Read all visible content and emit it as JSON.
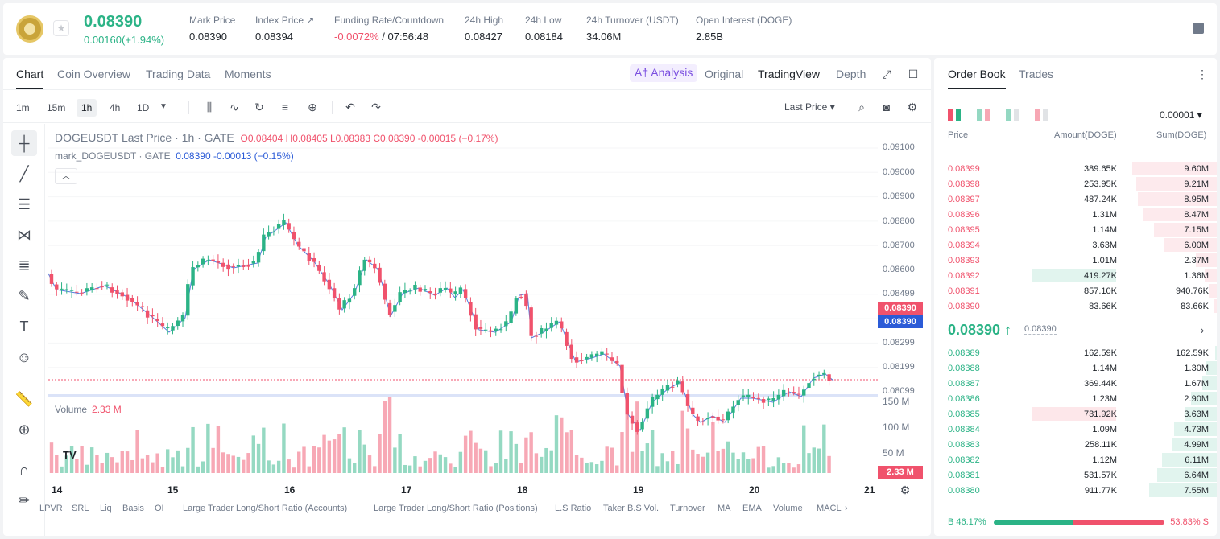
{
  "header": {
    "price": "0.08390",
    "change": "0.00160(+1.94%)",
    "stats": [
      {
        "label": "Mark Price",
        "value": "0.08390"
      },
      {
        "label": "Index Price ↗",
        "value": "0.08394"
      },
      {
        "label": "Funding Rate/Countdown",
        "value_red": "-0.0072%",
        "value": " / 07:56:48"
      },
      {
        "label": "24h High",
        "value": "0.08427"
      },
      {
        "label": "24h Low",
        "value": "0.08184"
      },
      {
        "label": "24h Turnover (USDT)",
        "value": "34.06M"
      },
      {
        "label": "Open Interest (DOGE)",
        "value": "2.85B"
      }
    ]
  },
  "chart_tabs": [
    "Chart",
    "Coin Overview",
    "Trading Data",
    "Moments"
  ],
  "view_tabs": {
    "ai": "A† Analysis",
    "original": "Original",
    "tradingview": "TradingView",
    "depth": "Depth"
  },
  "timeframes": [
    "1m",
    "15m",
    "1h",
    "4h",
    "1D"
  ],
  "last_price_select": "Last Price",
  "legend": {
    "title": "DOGEUSDT Last Price · 1h · GATE",
    "ohlc": "O0.08404  H0.08405  L0.08383  C0.08390  -0.00015 (−0.17%)",
    "mark": "mark_DOGEUSDT · GATE",
    "mark_vals": "0.08390  -0.00013 (−0.15%)"
  },
  "volume_legend": {
    "label": "Volume",
    "value": "2.33 M"
  },
  "yaxis": [
    "0.09100",
    "0.09000",
    "0.08900",
    "0.08800",
    "0.08700",
    "0.08600",
    "0.08499",
    "0.08299",
    "0.08199",
    "0.08099"
  ],
  "vol_axis": [
    "150 M",
    "100 M",
    "50 M"
  ],
  "price_tag_last": "0.08390",
  "price_tag_mark": "0.08390",
  "vol_tag": "2.33 M",
  "xaxis": [
    "14",
    "15",
    "16",
    "17",
    "18",
    "19",
    "20",
    "21"
  ],
  "indicators": [
    "LPVR",
    "SRL",
    "Liq",
    "Basis",
    "OI",
    "Large Trader Long/Short Ratio (Accounts)",
    "Large Trader Long/Short Ratio (Positions)",
    "L.S Ratio",
    "Taker B.S Vol.",
    "Turnover",
    "MA",
    "EMA",
    "Volume",
    "MACL"
  ],
  "orderbook": {
    "tabs": [
      "Order Book",
      "Trades"
    ],
    "precision": "0.00001",
    "headers": {
      "price": "Price",
      "amount": "Amount(DOGE)",
      "sum": "Sum(DOGE)"
    },
    "asks": [
      {
        "price": "0.08399",
        "amount": "389.65K",
        "sum": "9.60M",
        "depth": 0.91,
        "amt_depth": 0
      },
      {
        "price": "0.08398",
        "amount": "253.95K",
        "sum": "9.21M",
        "depth": 0.87,
        "amt_depth": 0
      },
      {
        "price": "0.08397",
        "amount": "487.24K",
        "sum": "8.95M",
        "depth": 0.85,
        "amt_depth": 0
      },
      {
        "price": "0.08396",
        "amount": "1.31M",
        "sum": "8.47M",
        "depth": 0.8,
        "amt_depth": 0
      },
      {
        "price": "0.08395",
        "amount": "1.14M",
        "sum": "7.15M",
        "depth": 0.68,
        "amt_depth": 0
      },
      {
        "price": "0.08394",
        "amount": "3.63M",
        "sum": "6.00M",
        "depth": 0.57,
        "amt_depth": 0
      },
      {
        "price": "0.08393",
        "amount": "1.01M",
        "sum": "2.37M",
        "depth": 0.23,
        "amt_depth": 0
      },
      {
        "price": "0.08392",
        "amount": "419.27K",
        "sum": "1.36M",
        "depth": 0.13,
        "amt_depth": 1
      },
      {
        "price": "0.08391",
        "amount": "857.10K",
        "sum": "940.76K",
        "depth": 0.09,
        "amt_depth": 0
      },
      {
        "price": "0.08390",
        "amount": "83.66K",
        "sum": "83.66K",
        "depth": 0.03,
        "amt_depth": 0
      }
    ],
    "mid_price": "0.08390 ↑",
    "mid_mark": "0.08390",
    "bids": [
      {
        "price": "0.08389",
        "amount": "162.59K",
        "sum": "162.59K",
        "depth": 0.02,
        "amt_depth": 0
      },
      {
        "price": "0.08388",
        "amount": "1.14M",
        "sum": "1.30M",
        "depth": 0.12,
        "amt_depth": 0
      },
      {
        "price": "0.08387",
        "amount": "369.44K",
        "sum": "1.67M",
        "depth": 0.16,
        "amt_depth": 0
      },
      {
        "price": "0.08386",
        "amount": "1.23M",
        "sum": "2.90M",
        "depth": 0.28,
        "amt_depth": 0
      },
      {
        "price": "0.08385",
        "amount": "731.92K",
        "sum": "3.63M",
        "depth": 0.35,
        "amt_depth": 1
      },
      {
        "price": "0.08384",
        "amount": "1.09M",
        "sum": "4.73M",
        "depth": 0.46,
        "amt_depth": 0
      },
      {
        "price": "0.08383",
        "amount": "258.11K",
        "sum": "4.99M",
        "depth": 0.48,
        "amt_depth": 0
      },
      {
        "price": "0.08382",
        "amount": "1.12M",
        "sum": "6.11M",
        "depth": 0.59,
        "amt_depth": 0
      },
      {
        "price": "0.08381",
        "amount": "531.57K",
        "sum": "6.64M",
        "depth": 0.64,
        "amt_depth": 0
      },
      {
        "price": "0.08380",
        "amount": "911.77K",
        "sum": "7.55M",
        "depth": 0.73,
        "amt_depth": 0
      }
    ],
    "buy_ratio": "B  46.17%",
    "sell_ratio": "53.83%  S",
    "buy_pct": 46.17
  },
  "colors": {
    "up": "#2bb386",
    "down": "#f0526c",
    "mark": "#2b5bd7"
  }
}
